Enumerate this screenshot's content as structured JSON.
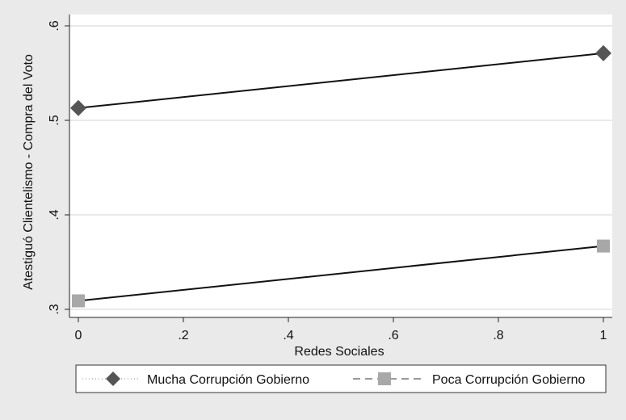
{
  "chart_data": {
    "type": "line",
    "title": "",
    "xlabel": "Redes Sociales",
    "ylabel": "Atestiguó Clientelismo - Compra del Voto",
    "xlim": [
      0,
      1
    ],
    "ylim": [
      0.3,
      0.6
    ],
    "x_ticks": [
      0,
      0.2,
      0.4,
      0.6,
      0.8,
      1
    ],
    "x_tick_labels": [
      "0",
      ".2",
      ".4",
      ".6",
      ".8",
      "1"
    ],
    "y_ticks": [
      0.3,
      0.4,
      0.5,
      0.6
    ],
    "y_tick_labels": [
      ".3",
      ".4",
      ".5",
      ".6"
    ],
    "grid": true,
    "legend_position": "bottom",
    "series": [
      {
        "name": "Mucha Corrupción Gobierno",
        "marker": "diamond",
        "legend_line_style": "dotted",
        "color": "#555555",
        "x": [
          0,
          1
        ],
        "values": [
          0.513,
          0.571
        ]
      },
      {
        "name": "Poca Corrupción Gobierno",
        "marker": "square",
        "legend_line_style": "dashed",
        "color": "#a8a8a8",
        "x": [
          0,
          1
        ],
        "values": [
          0.309,
          0.367
        ]
      }
    ]
  }
}
